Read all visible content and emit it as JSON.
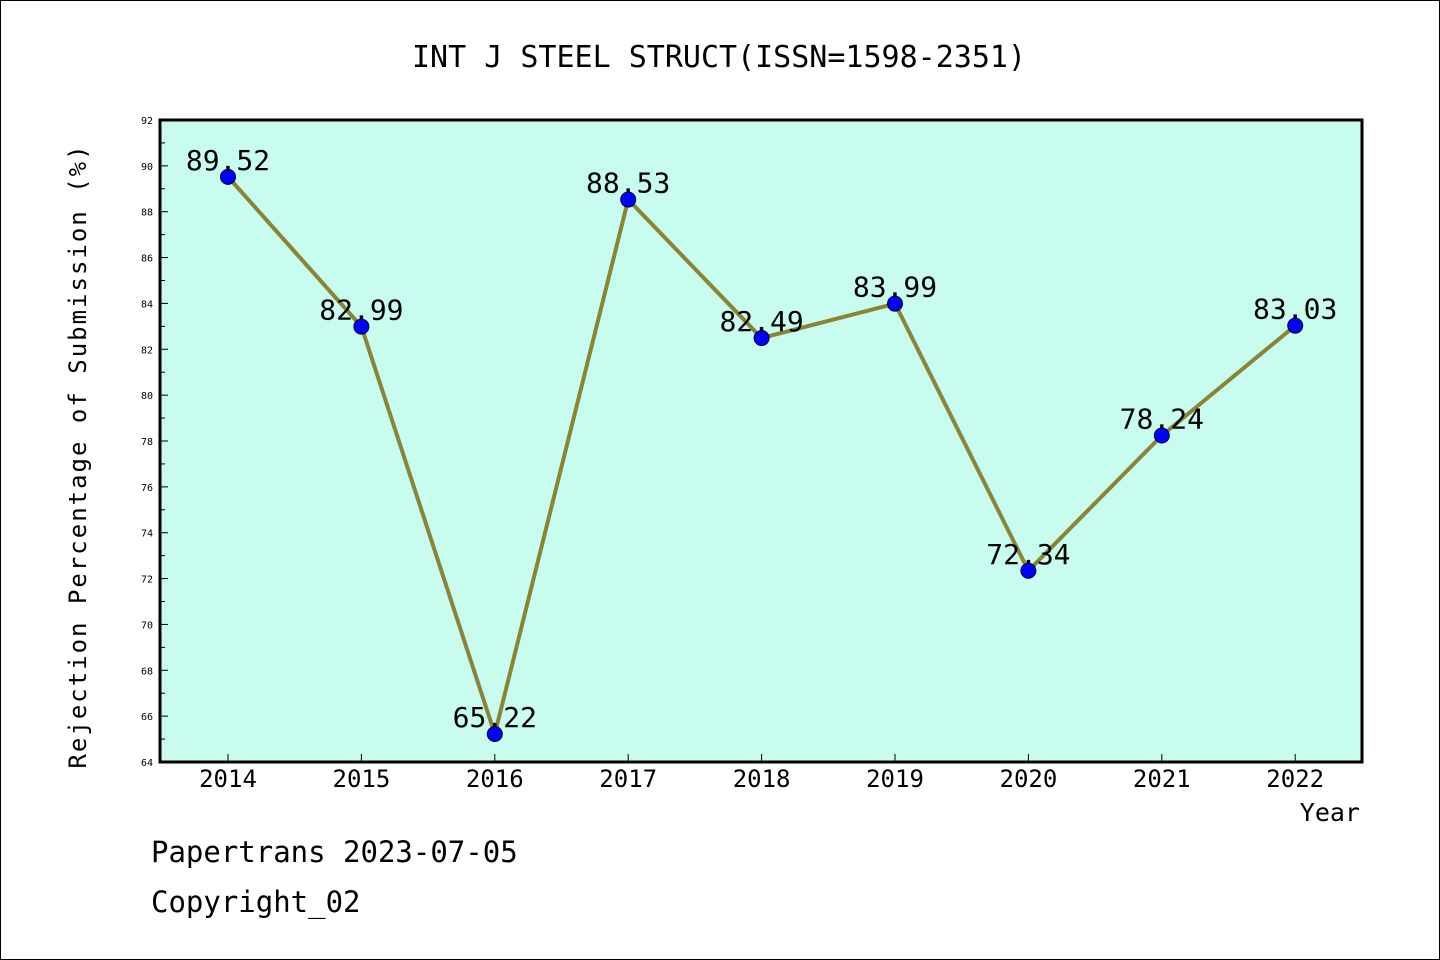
{
  "chart_data": {
    "type": "line",
    "title": "INT J STEEL STRUCT(ISSN=1598-2351)",
    "xlabel": "Year",
    "ylabel": "Rejection Percentage of Submission (%)",
    "categories": [
      "2014",
      "2015",
      "2016",
      "2017",
      "2018",
      "2019",
      "2020",
      "2021",
      "2022"
    ],
    "values": [
      89.52,
      82.99,
      65.22,
      88.53,
      82.49,
      83.99,
      72.34,
      78.24,
      83.03
    ],
    "data_labels": [
      "89.52",
      "82.99",
      "65.22",
      "88.53",
      "82.49",
      "83.99",
      "72.34",
      "78.24",
      "83.03"
    ],
    "ylim": [
      64,
      92
    ],
    "yticks": [
      64,
      66,
      68,
      70,
      72,
      74,
      76,
      78,
      80,
      82,
      84,
      86,
      88,
      90,
      92
    ],
    "grid": false,
    "legend": "none",
    "colors": {
      "plot_background": "#c8fcee",
      "line": "#8a8536",
      "marker": "#0000ff",
      "axis": "#000000"
    }
  },
  "footer": {
    "line1": "Papertrans 2023-07-05",
    "line2": "Copyright_02"
  }
}
